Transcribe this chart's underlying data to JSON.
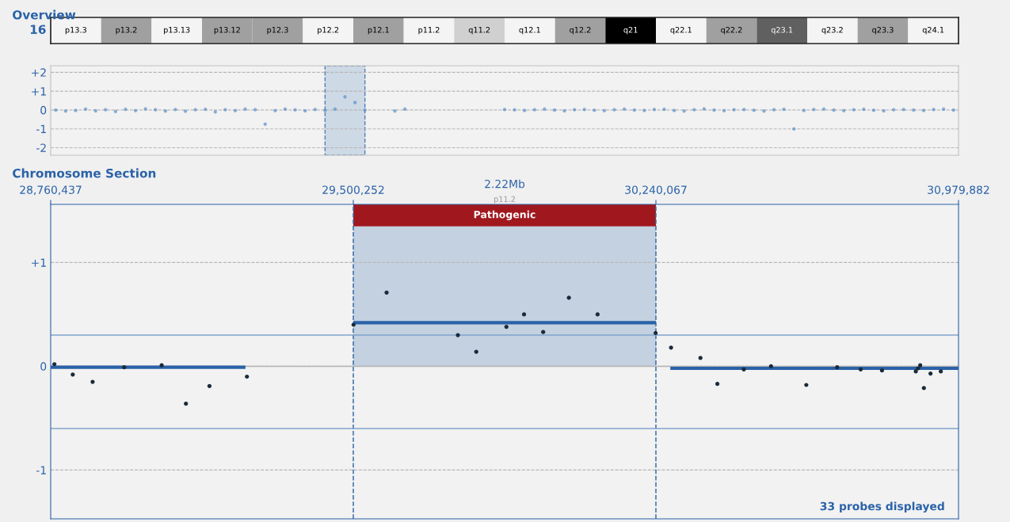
{
  "chart_data": [
    {
      "type": "other",
      "title": "Overview",
      "ylabel": "16",
      "categories": [
        "p13.3",
        "p13.2",
        "p13.13",
        "p13.12",
        "p12.3",
        "p12.2",
        "p12.1",
        "p11.2",
        "q11.2",
        "q12.1",
        "q12.2",
        "q21",
        "q22.1",
        "q22.2",
        "q23.1",
        "q23.2",
        "q23.3",
        "q24.1"
      ],
      "colors": [
        "#f4f4f4",
        "#a0a0a0",
        "#f4f4f4",
        "#a0a0a0",
        "#a0a0a0",
        "#f4f4f4",
        "#a0a0a0",
        "#f4f4f4",
        "#d0d0d0",
        "#f4f4f4",
        "#a0a0a0",
        "#000000",
        "#f4f4f4",
        "#a0a0a0",
        "#606060",
        "#f4f4f4",
        "#a0a0a0",
        "#f4f4f4"
      ]
    },
    {
      "type": "scatter",
      "ylim": [
        -2.4,
        2.35
      ],
      "categories": [
        null,
        null,
        null,
        null,
        null,
        null,
        null,
        null,
        null,
        null,
        null,
        null,
        null,
        null,
        null,
        null,
        null,
        null,
        null,
        null,
        null,
        null,
        null,
        null,
        null,
        null,
        null,
        null,
        null,
        null,
        null,
        null,
        null,
        null,
        null,
        null,
        null,
        null,
        null,
        null,
        null,
        null,
        null,
        null,
        null,
        null,
        null,
        null,
        null,
        null,
        null,
        null,
        null,
        null,
        null,
        null,
        null,
        null,
        null,
        null,
        null,
        null,
        null,
        null,
        null,
        null,
        null,
        null,
        null,
        null,
        null,
        null,
        null,
        null,
        null,
        null,
        null,
        null,
        null,
        null,
        null,
        null,
        null,
        null,
        null,
        null,
        null,
        null,
        null,
        null,
        null
      ],
      "yticks": [
        {
          "value": 2,
          "label": "+2"
        },
        {
          "value": 1,
          "label": "+1"
        },
        0,
        {
          "value": -1,
          "label": "-1"
        },
        {
          "value": -2,
          "label": "-2"
        }
      ],
      "grid": "y",
      "marker": "circle",
      "series": [
        {
          "color": "#5b8fc9",
          "values": [
            0.0,
            -0.05,
            -0.02,
            0.05,
            -0.04,
            0.02,
            -0.08,
            0.04,
            -0.03,
            0.06,
            0.02,
            -0.05,
            0.03,
            -0.06,
            0.02,
            0.04,
            -0.1,
            0.02,
            -0.03,
            0.05,
            0.02,
            -0.75,
            -0.03,
            0.05,
            0.01,
            -0.04,
            0.03,
            -0.02,
            0.05,
            0.7,
            0.4,
            0.0,
            null,
            null,
            -0.05,
            0.05,
            null,
            null,
            null,
            null,
            null,
            null,
            null,
            null,
            null,
            0.03,
            0.01,
            -0.02,
            0.02,
            0.05,
            0.0,
            -0.04,
            0.02,
            0.03,
            -0.01,
            -0.03,
            0.02,
            0.05,
            0.0,
            -0.02,
            0.03,
            0.04,
            -0.02,
            -0.05,
            0.02,
            0.06,
            0.0,
            -0.03,
            0.02,
            0.03,
            -0.01,
            -0.05,
            0.02,
            0.04,
            -1.0,
            -0.02,
            0.03,
            0.05,
            0.0,
            -0.03,
            0.02,
            0.04,
            -0.01,
            -0.04,
            0.02,
            0.03,
            0.0,
            -0.02,
            0.03,
            0.05,
            0.0
          ]
        }
      ]
    },
    {
      "type": "scatter",
      "title": "Chromosome Section",
      "xlim": [
        28760437,
        30979882
      ],
      "ylim": [
        -1.47,
        1.56
      ],
      "xticks": [
        {
          "value": 28760437,
          "label": "28,760,437"
        },
        {
          "value": 29500252,
          "label": "29,500,252"
        },
        {
          "value": 30240067,
          "label": "30,240,067"
        },
        {
          "value": 30979882,
          "label": "30,979,882"
        }
      ],
      "yticks": [
        {
          "value": 1,
          "label": "+1"
        },
        0,
        {
          "value": -1,
          "label": "-1"
        }
      ],
      "grid": "y",
      "annotations": [
        "2.22Mb",
        "p11.2",
        "33 probes displayed"
      ],
      "bands": [
        {
          "axis": "x",
          "from": 29500252,
          "to": 30240067,
          "color": "#c3d1e0"
        },
        {
          "axis": "x",
          "from": 29500252,
          "to": 30240067,
          "label": "Pathogenic",
          "color": "#a0181e"
        }
      ],
      "ref_lines": [
        {
          "axis": "x",
          "value": 29500252,
          "color": "#3a6ea8",
          "line_style": "dashed"
        },
        {
          "axis": "x",
          "value": 30240067,
          "color": "#3a6ea8",
          "line_style": "dashed"
        },
        {
          "axis": "y",
          "value": 0.3,
          "color": "#7fa3cc",
          "line_style": "solid"
        },
        {
          "axis": "y",
          "value": -0.6,
          "color": "#7fa3cc",
          "line_style": "solid"
        },
        {
          "axis": "y",
          "value": 0,
          "color": "#b4b4b4",
          "line_style": "solid"
        }
      ],
      "series": [
        {
          "type": "line",
          "color": "#2a62a8",
          "x": [
            28760437,
            29236642
          ],
          "values": [
            -0.01,
            -0.01
          ]
        },
        {
          "type": "line",
          "color": "#2a62a8",
          "x": [
            29500252,
            30240067
          ],
          "values": [
            0.42,
            0.42
          ]
        },
        {
          "type": "line",
          "color": "#2a62a8",
          "x": [
            30275308,
            30979882
          ],
          "values": [
            -0.02,
            -0.02
          ]
        },
        {
          "type": "scatter",
          "color": "#1a2a3a",
          "marker": "circle",
          "x": [
            28769422,
            28814347,
            28862866,
            28940137,
            29031784,
            29091085,
            29148589,
            29240236,
            29500801,
            29581666,
            29755975,
            29800900,
            29874577,
            29917705,
            29964427,
            30027322,
            30097405,
            30239368,
            30277105,
            30348985,
            30390316,
            30455008,
            30521497,
            30607753,
            30683227,
            30740731,
            30792844,
            30875506,
            30880897,
            30886288,
            30895273,
            30911446,
            30936604
          ],
          "values": [
            0.02,
            -0.08,
            -0.15,
            -0.01,
            0.01,
            -0.36,
            -0.19,
            -0.1,
            0.4,
            0.71,
            0.3,
            0.14,
            0.38,
            0.5,
            0.33,
            0.66,
            0.5,
            0.32,
            0.18,
            0.08,
            -0.17,
            -0.03,
            0.0,
            -0.18,
            -0.01,
            -0.03,
            -0.04,
            -0.05,
            -0.02,
            0.01,
            -0.21,
            -0.07,
            -0.05
          ]
        }
      ]
    }
  ]
}
